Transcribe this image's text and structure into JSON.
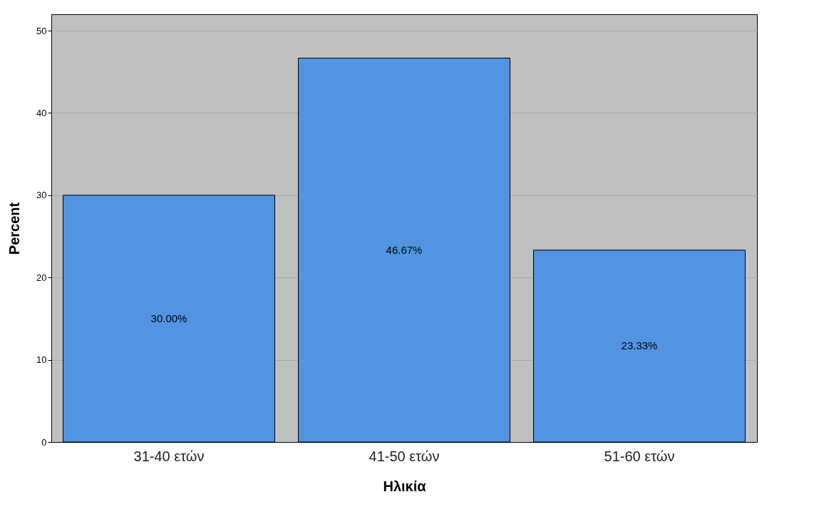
{
  "chart_data": {
    "type": "bar",
    "xlabel": "Ηλικία",
    "ylabel": "Percent",
    "categories": [
      "31-40 ετών",
      "41-50 ετών",
      "51-60 ετών"
    ],
    "values": [
      30.0,
      46.67,
      23.33
    ],
    "value_labels": [
      "30.00%",
      "46.67%",
      "23.33%"
    ],
    "color": "#5294e2",
    "ylim": [
      0,
      52
    ],
    "yticks": [
      0,
      10,
      20,
      30,
      40,
      50
    ],
    "grid": "y"
  }
}
